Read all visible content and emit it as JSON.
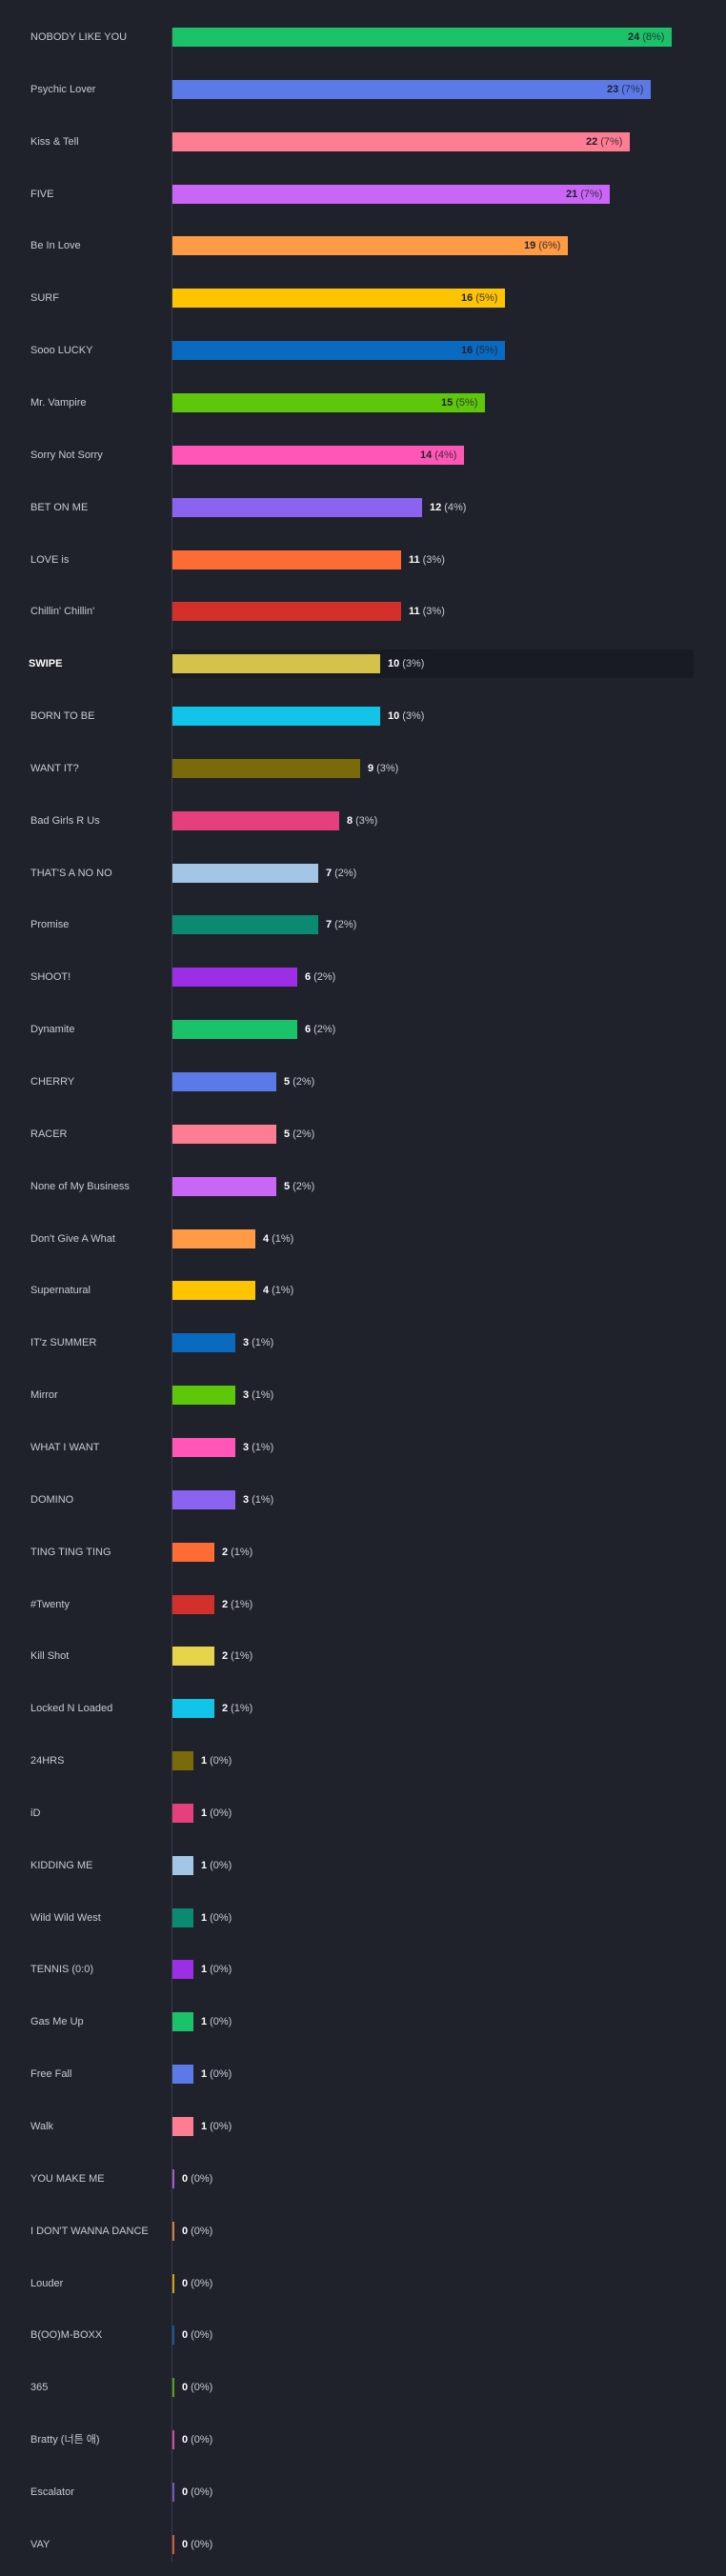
{
  "chart_data": {
    "type": "bar",
    "orientation": "horizontal",
    "grid": false,
    "highlighted": "SWIPE",
    "xlim": [
      0,
      24
    ],
    "items": [
      {
        "label": "NOBODY LIKE YOU",
        "value": 24,
        "pct": "(8%)",
        "color": "#1ac26a"
      },
      {
        "label": "Psychic Lover",
        "value": 23,
        "pct": "(7%)",
        "color": "#5b7ae8"
      },
      {
        "label": "Kiss & Tell",
        "value": 22,
        "pct": "(7%)",
        "color": "#ff7d93"
      },
      {
        "label": "FIVE",
        "value": 21,
        "pct": "(7%)",
        "color": "#c966f5"
      },
      {
        "label": "Be In Love",
        "value": 19,
        "pct": "(6%)",
        "color": "#ff9a45"
      },
      {
        "label": "SURF",
        "value": 16,
        "pct": "(5%)",
        "color": "#ffc400"
      },
      {
        "label": "Sooo LUCKY",
        "value": 16,
        "pct": "(5%)",
        "color": "#0a6abf"
      },
      {
        "label": "Mr. Vampire",
        "value": 15,
        "pct": "(5%)",
        "color": "#5fc70a"
      },
      {
        "label": "Sorry Not Sorry",
        "value": 14,
        "pct": "(4%)",
        "color": "#ff56b8"
      },
      {
        "label": "BET ON ME",
        "value": 12,
        "pct": "(4%)",
        "color": "#8a63f0"
      },
      {
        "label": "LOVE is",
        "value": 11,
        "pct": "(3%)",
        "color": "#ff6b35"
      },
      {
        "label": "Chillin' Chillin'",
        "value": 11,
        "pct": "(3%)",
        "color": "#d3302c"
      },
      {
        "label": "SWIPE",
        "value": 10,
        "pct": "(3%)",
        "color": "#d4c24a"
      },
      {
        "label": "BORN TO BE",
        "value": 10,
        "pct": "(3%)",
        "color": "#12c4e8"
      },
      {
        "label": "WANT IT?",
        "value": 9,
        "pct": "(3%)",
        "color": "#7b6a0a"
      },
      {
        "label": "Bad Girls R Us",
        "value": 8,
        "pct": "(3%)",
        "color": "#e63f7e"
      },
      {
        "label": "THAT'S A NO NO",
        "value": 7,
        "pct": "(2%)",
        "color": "#a4c6e6"
      },
      {
        "label": "Promise",
        "value": 7,
        "pct": "(2%)",
        "color": "#0b8a72"
      },
      {
        "label": "SHOOT!",
        "value": 6,
        "pct": "(2%)",
        "color": "#9c2ee6"
      },
      {
        "label": "Dynamite",
        "value": 6,
        "pct": "(2%)",
        "color": "#1ac26a"
      },
      {
        "label": "CHERRY",
        "value": 5,
        "pct": "(2%)",
        "color": "#5b7ae8"
      },
      {
        "label": "RACER",
        "value": 5,
        "pct": "(2%)",
        "color": "#ff7d93"
      },
      {
        "label": "None of My Business",
        "value": 5,
        "pct": "(2%)",
        "color": "#c966f5"
      },
      {
        "label": "Don't Give A What",
        "value": 4,
        "pct": "(1%)",
        "color": "#ff9a45"
      },
      {
        "label": "Supernatural",
        "value": 4,
        "pct": "(1%)",
        "color": "#ffc400"
      },
      {
        "label": "IT'z SUMMER",
        "value": 3,
        "pct": "(1%)",
        "color": "#0a6abf"
      },
      {
        "label": "Mirror",
        "value": 3,
        "pct": "(1%)",
        "color": "#5fc70a"
      },
      {
        "label": "WHAT I WANT",
        "value": 3,
        "pct": "(1%)",
        "color": "#ff56b8"
      },
      {
        "label": "DOMINO",
        "value": 3,
        "pct": "(1%)",
        "color": "#8a63f0"
      },
      {
        "label": "TING TING TING",
        "value": 2,
        "pct": "(1%)",
        "color": "#ff6b35"
      },
      {
        "label": "#Twenty",
        "value": 2,
        "pct": "(1%)",
        "color": "#d3302c"
      },
      {
        "label": "Kill Shot",
        "value": 2,
        "pct": "(1%)",
        "color": "#e8d44a"
      },
      {
        "label": "Locked N Loaded",
        "value": 2,
        "pct": "(1%)",
        "color": "#12c4e8"
      },
      {
        "label": "24HRS",
        "value": 1,
        "pct": "(0%)",
        "color": "#7b6a0a"
      },
      {
        "label": "iD",
        "value": 1,
        "pct": "(0%)",
        "color": "#e63f7e"
      },
      {
        "label": "KIDDING ME",
        "value": 1,
        "pct": "(0%)",
        "color": "#a4c6e6"
      },
      {
        "label": "Wild Wild West",
        "value": 1,
        "pct": "(0%)",
        "color": "#0b8a72"
      },
      {
        "label": "TENNIS (0:0)",
        "value": 1,
        "pct": "(0%)",
        "color": "#9c2ee6"
      },
      {
        "label": "Gas Me Up",
        "value": 1,
        "pct": "(0%)",
        "color": "#1ac26a"
      },
      {
        "label": "Free Fall",
        "value": 1,
        "pct": "(0%)",
        "color": "#5b7ae8"
      },
      {
        "label": "Walk",
        "value": 1,
        "pct": "(0%)",
        "color": "#ff7d93"
      },
      {
        "label": "YOU MAKE ME",
        "value": 0,
        "pct": "(0%)",
        "color": "#c966f5"
      },
      {
        "label": "I DON'T WANNA DANCE",
        "value": 0,
        "pct": "(0%)",
        "color": "#ff9a45"
      },
      {
        "label": "Louder",
        "value": 0,
        "pct": "(0%)",
        "color": "#ffc400"
      },
      {
        "label": "B(OO)M-BOXX",
        "value": 0,
        "pct": "(0%)",
        "color": "#0a6abf"
      },
      {
        "label": "365",
        "value": 0,
        "pct": "(0%)",
        "color": "#5fc70a"
      },
      {
        "label": "Bratty (너튼 애)",
        "value": 0,
        "pct": "(0%)",
        "color": "#ff56b8"
      },
      {
        "label": "Escalator",
        "value": 0,
        "pct": "(0%)",
        "color": "#8a63f0"
      },
      {
        "label": "VAY",
        "value": 0,
        "pct": "(0%)",
        "color": "#ff6b35"
      }
    ]
  }
}
